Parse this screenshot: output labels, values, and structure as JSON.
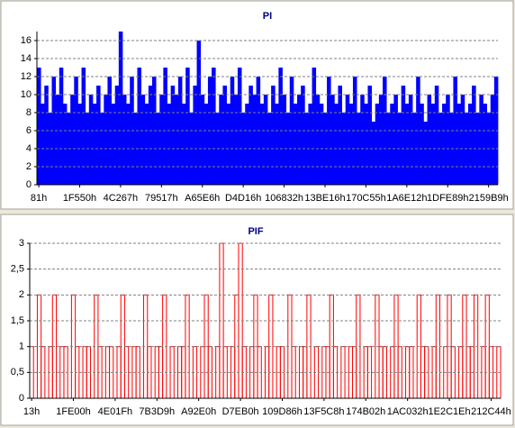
{
  "chart_data": [
    {
      "type": "bar",
      "title": "PI",
      "color": "#0000ff",
      "grid": true,
      "ylim": [
        0,
        17
      ],
      "yticks": [
        0,
        2,
        4,
        6,
        8,
        10,
        12,
        14,
        16
      ],
      "categories": [
        "81h",
        null,
        null,
        null,
        null,
        null,
        null,
        null,
        null,
        null,
        null,
        "1F550h",
        null,
        null,
        null,
        null,
        null,
        null,
        null,
        null,
        null,
        null,
        "4C267h",
        null,
        null,
        null,
        null,
        null,
        null,
        null,
        null,
        null,
        null,
        "79517h",
        null,
        null,
        null,
        null,
        null,
        null,
        null,
        null,
        null,
        null,
        "A65E6h",
        null,
        null,
        null,
        null,
        null,
        null,
        null,
        null,
        null,
        null,
        "D4D16h",
        null,
        null,
        null,
        null,
        null,
        null,
        null,
        null,
        null,
        null,
        "106832h",
        null,
        null,
        null,
        null,
        null,
        null,
        null,
        null,
        null,
        null,
        "13BE16h",
        null,
        null,
        null,
        null,
        null,
        null,
        null,
        null,
        null,
        null,
        "170C55h",
        null,
        null,
        null,
        null,
        null,
        null,
        null,
        null,
        null,
        null,
        "1A6E12h",
        null,
        null,
        null,
        null,
        null,
        null,
        null,
        null,
        null,
        null,
        "1DFE89h",
        null,
        null,
        null,
        null,
        null,
        null,
        null,
        null,
        null,
        null,
        "2159B9h",
        null,
        null
      ],
      "values": [
        13,
        9,
        11,
        8,
        12,
        10,
        13,
        9,
        8,
        10,
        12,
        9,
        13,
        8,
        10,
        9,
        11,
        8,
        10,
        12,
        9,
        11,
        17,
        10,
        9,
        12,
        8,
        13,
        10,
        9,
        11,
        12,
        8,
        10,
        13,
        9,
        11,
        10,
        12,
        9,
        13,
        8,
        11,
        16,
        10,
        9,
        12,
        13,
        8,
        10,
        11,
        9,
        12,
        10,
        13,
        8,
        9,
        11,
        10,
        12,
        9,
        10,
        8,
        11,
        9,
        13,
        10,
        8,
        12,
        9,
        10,
        11,
        8,
        9,
        13,
        10,
        9,
        8,
        12,
        10,
        9,
        11,
        8,
        10,
        9,
        12,
        8,
        10,
        9,
        11,
        7,
        9,
        10,
        12,
        8,
        9,
        10,
        8,
        11,
        9,
        10,
        8,
        12,
        9,
        7,
        10,
        9,
        11,
        8,
        9,
        10,
        8,
        12,
        9,
        10,
        8,
        9,
        11,
        8,
        10,
        9,
        8,
        10,
        12
      ]
    },
    {
      "type": "bar",
      "title": "PIF",
      "color": "#ff0000",
      "grid": true,
      "ylim": [
        0,
        3
      ],
      "yticks": [
        0,
        {
          "value": 0.5,
          "label": "0,5"
        },
        1,
        {
          "value": 1.5,
          "label": "1,5"
        },
        2,
        {
          "value": 2.5,
          "label": "2,5"
        },
        3
      ],
      "categories": [
        "13h",
        null,
        null,
        null,
        null,
        null,
        null,
        null,
        null,
        null,
        null,
        "1FE00h",
        null,
        null,
        null,
        null,
        null,
        null,
        null,
        null,
        null,
        null,
        "4E01Fh",
        null,
        null,
        null,
        null,
        null,
        null,
        null,
        null,
        null,
        null,
        "7B3D9h",
        null,
        null,
        null,
        null,
        null,
        null,
        null,
        null,
        null,
        null,
        "A92E0h",
        null,
        null,
        null,
        null,
        null,
        null,
        null,
        null,
        null,
        null,
        "D7EB0h",
        null,
        null,
        null,
        null,
        null,
        null,
        null,
        null,
        null,
        null,
        "109D86h",
        null,
        null,
        null,
        null,
        null,
        null,
        null,
        null,
        null,
        null,
        "13F5C8h",
        null,
        null,
        null,
        null,
        null,
        null,
        null,
        null,
        null,
        null,
        "174B02h",
        null,
        null,
        null,
        null,
        null,
        null,
        null,
        null,
        null,
        null,
        "1AC032h",
        null,
        null,
        null,
        null,
        null,
        null,
        null,
        null,
        null,
        null,
        "1E2C1Eh",
        null,
        null,
        null,
        null,
        null,
        null,
        null,
        null,
        null,
        null,
        "212C44h",
        null,
        null
      ],
      "values": [
        1,
        0,
        2,
        1,
        0,
        1,
        2,
        0,
        1,
        1,
        0,
        2,
        1,
        0,
        1,
        1,
        0,
        2,
        1,
        0,
        1,
        1,
        0,
        1,
        2,
        1,
        0,
        1,
        1,
        0,
        2,
        1,
        0,
        1,
        1,
        2,
        0,
        1,
        0,
        1,
        1,
        2,
        0,
        1,
        0,
        1,
        2,
        1,
        0,
        1,
        3,
        1,
        0,
        1,
        2,
        3,
        1,
        0,
        1,
        2,
        1,
        0,
        1,
        2,
        0,
        1,
        1,
        0,
        2,
        1,
        0,
        1,
        1,
        2,
        0,
        1,
        0,
        1,
        1,
        2,
        1,
        0,
        1,
        0,
        1,
        1,
        2,
        0,
        1,
        1,
        0,
        2,
        1,
        1,
        0,
        1,
        2,
        1,
        0,
        1,
        1,
        0,
        2,
        1,
        1,
        0,
        1,
        2,
        0,
        1,
        2,
        1,
        0,
        1,
        2,
        1,
        1,
        2,
        0,
        1,
        2,
        1,
        0,
        1
      ]
    }
  ]
}
